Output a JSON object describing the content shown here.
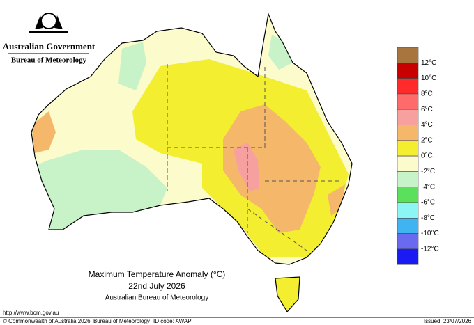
{
  "header": {
    "government": "Australian Government",
    "agency": "Bureau of Meteorology"
  },
  "legend": {
    "colors": [
      "#a8753e",
      "#c80000",
      "#ff2a2a",
      "#ff6a6a",
      "#f7a0a0",
      "#f5b86a",
      "#f3ee30",
      "#fbfbcc",
      "#c8f2c8",
      "#5ae05a",
      "#8ef5f5",
      "#3fb4f0",
      "#6a6af0",
      "#1a1af5"
    ],
    "labels": [
      "12°C",
      "10°C",
      "8°C",
      "6°C",
      "4°C",
      "2°C",
      "0°C",
      "-2°C",
      "-4°C",
      "-6°C",
      "-8°C",
      "-10°C",
      "-12°C"
    ]
  },
  "title": {
    "line1": "Maximum Temperature Anomaly (°C)",
    "line2": "22nd July 2026",
    "line3": "Australian Bureau of Meteorology"
  },
  "footer": {
    "url": "http://www.bom.gov.au",
    "copyright": "© Commonwealth of Australia 2026, Bureau of Meteorology",
    "id": "ID code: AWAP",
    "issued": "Issued: 23/07/2026"
  }
}
